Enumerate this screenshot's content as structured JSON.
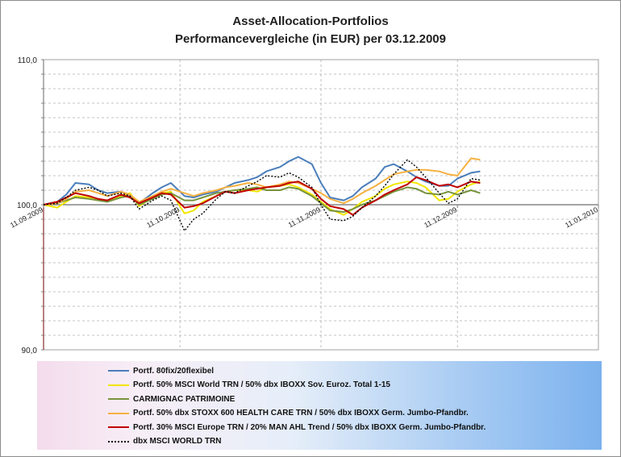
{
  "title": "Asset-Allocation-Portfolios",
  "subtitle": "Performancevergleiche (in EUR) per 03.12.2009",
  "chart_data": {
    "type": "line",
    "x_axis_type": "date",
    "xlim": [
      "11.09.2009",
      "11.01.2010"
    ],
    "ylim": [
      90,
      110
    ],
    "y_ticks": [
      "110,0",
      "100,0",
      "90,0"
    ],
    "y_minor_step": 1,
    "x_ticks": [
      "11.09.2009",
      "11.10.2009",
      "11.11.2009",
      "11.12.2009",
      "11.01.2010"
    ],
    "grid": "horizontal dashed + vertical dashed",
    "reference_line": 100,
    "legend_position": "bottom",
    "series": [
      {
        "name": "Portf. 80fix/20flexibel",
        "color": "#4a7ebb",
        "dash": "solid",
        "points": [
          [
            "2009-09-11",
            100.0
          ],
          [
            "2009-09-14",
            100.2
          ],
          [
            "2009-09-16",
            100.7
          ],
          [
            "2009-09-18",
            101.5
          ],
          [
            "2009-09-21",
            101.4
          ],
          [
            "2009-09-23",
            101.0
          ],
          [
            "2009-09-25",
            100.8
          ],
          [
            "2009-09-28",
            100.9
          ],
          [
            "2009-09-30",
            100.7
          ],
          [
            "2009-10-02",
            100.1
          ],
          [
            "2009-10-05",
            100.8
          ],
          [
            "2009-10-07",
            101.2
          ],
          [
            "2009-10-09",
            101.5
          ],
          [
            "2009-10-12",
            100.6
          ],
          [
            "2009-10-14",
            100.5
          ],
          [
            "2009-10-16",
            100.7
          ],
          [
            "2009-10-19",
            100.9
          ],
          [
            "2009-10-21",
            101.2
          ],
          [
            "2009-10-23",
            101.5
          ],
          [
            "2009-10-26",
            101.7
          ],
          [
            "2009-10-28",
            101.9
          ],
          [
            "2009-10-30",
            102.3
          ],
          [
            "2009-11-02",
            102.6
          ],
          [
            "2009-11-04",
            103.0
          ],
          [
            "2009-11-06",
            103.3
          ],
          [
            "2009-11-09",
            102.8
          ],
          [
            "2009-11-11",
            101.5
          ],
          [
            "2009-11-13",
            100.5
          ],
          [
            "2009-11-16",
            100.3
          ],
          [
            "2009-11-18",
            100.6
          ],
          [
            "2009-11-20",
            101.2
          ],
          [
            "2009-11-23",
            101.8
          ],
          [
            "2009-11-25",
            102.6
          ],
          [
            "2009-11-27",
            102.8
          ],
          [
            "2009-11-30",
            102.3
          ],
          [
            "2009-12-02",
            101.9
          ],
          [
            "2009-12-04",
            101.6
          ],
          [
            "2009-12-07",
            101.3
          ],
          [
            "2009-12-09",
            101.3
          ],
          [
            "2009-12-11",
            101.8
          ],
          [
            "2009-12-14",
            102.2
          ],
          [
            "2009-12-16",
            102.3
          ]
        ]
      },
      {
        "name": "Portf. 50% MSCI World TRN / 50% dbx IBOXX Sov. Euroz. Total 1-15",
        "color": "#f2e600",
        "dash": "solid",
        "points": [
          [
            "2009-09-11",
            100.0
          ],
          [
            "2009-09-14",
            99.8
          ],
          [
            "2009-09-16",
            100.2
          ],
          [
            "2009-09-18",
            100.6
          ],
          [
            "2009-09-21",
            100.5
          ],
          [
            "2009-09-23",
            100.4
          ],
          [
            "2009-09-25",
            100.2
          ],
          [
            "2009-09-28",
            100.6
          ],
          [
            "2009-09-30",
            100.8
          ],
          [
            "2009-10-02",
            99.9
          ],
          [
            "2009-10-05",
            100.5
          ],
          [
            "2009-10-07",
            100.8
          ],
          [
            "2009-10-09",
            100.9
          ],
          [
            "2009-10-12",
            99.4
          ],
          [
            "2009-10-14",
            99.6
          ],
          [
            "2009-10-16",
            100.2
          ],
          [
            "2009-10-19",
            100.6
          ],
          [
            "2009-10-21",
            100.9
          ],
          [
            "2009-10-23",
            101.0
          ],
          [
            "2009-10-26",
            101.0
          ],
          [
            "2009-10-28",
            100.9
          ],
          [
            "2009-10-30",
            101.2
          ],
          [
            "2009-11-02",
            101.3
          ],
          [
            "2009-11-04",
            101.4
          ],
          [
            "2009-11-06",
            101.2
          ],
          [
            "2009-11-09",
            100.7
          ],
          [
            "2009-11-11",
            100.2
          ],
          [
            "2009-11-13",
            99.7
          ],
          [
            "2009-11-16",
            99.3
          ],
          [
            "2009-11-18",
            99.7
          ],
          [
            "2009-11-20",
            100.2
          ],
          [
            "2009-11-23",
            100.6
          ],
          [
            "2009-11-25",
            101.1
          ],
          [
            "2009-11-27",
            101.4
          ],
          [
            "2009-11-30",
            101.6
          ],
          [
            "2009-12-02",
            101.5
          ],
          [
            "2009-12-04",
            101.2
          ],
          [
            "2009-12-07",
            100.3
          ],
          [
            "2009-12-09",
            100.4
          ],
          [
            "2009-12-11",
            100.9
          ],
          [
            "2009-12-14",
            101.4
          ],
          [
            "2009-12-16",
            101.6
          ]
        ]
      },
      {
        "name": "CARMIGNAC PATRIMOINE",
        "color": "#77933c",
        "dash": "solid",
        "points": [
          [
            "2009-09-11",
            100.0
          ],
          [
            "2009-09-14",
            100.1
          ],
          [
            "2009-09-16",
            100.3
          ],
          [
            "2009-09-18",
            100.5
          ],
          [
            "2009-09-21",
            100.4
          ],
          [
            "2009-09-23",
            100.3
          ],
          [
            "2009-09-25",
            100.2
          ],
          [
            "2009-09-28",
            100.5
          ],
          [
            "2009-09-30",
            100.6
          ],
          [
            "2009-10-02",
            100.0
          ],
          [
            "2009-10-05",
            100.4
          ],
          [
            "2009-10-07",
            100.7
          ],
          [
            "2009-10-09",
            100.8
          ],
          [
            "2009-10-12",
            100.3
          ],
          [
            "2009-10-14",
            100.3
          ],
          [
            "2009-10-16",
            100.5
          ],
          [
            "2009-10-19",
            100.8
          ],
          [
            "2009-10-21",
            100.9
          ],
          [
            "2009-10-23",
            101.0
          ],
          [
            "2009-10-26",
            101.1
          ],
          [
            "2009-10-28",
            101.2
          ],
          [
            "2009-10-30",
            101.0
          ],
          [
            "2009-11-02",
            101.0
          ],
          [
            "2009-11-04",
            101.2
          ],
          [
            "2009-11-06",
            101.1
          ],
          [
            "2009-11-09",
            100.6
          ],
          [
            "2009-11-11",
            100.1
          ],
          [
            "2009-11-13",
            99.6
          ],
          [
            "2009-11-16",
            99.5
          ],
          [
            "2009-11-18",
            99.7
          ],
          [
            "2009-11-20",
            100.0
          ],
          [
            "2009-11-23",
            100.3
          ],
          [
            "2009-11-25",
            100.6
          ],
          [
            "2009-11-27",
            100.9
          ],
          [
            "2009-11-30",
            101.2
          ],
          [
            "2009-12-02",
            101.1
          ],
          [
            "2009-12-04",
            100.8
          ],
          [
            "2009-12-07",
            100.7
          ],
          [
            "2009-12-09",
            100.9
          ],
          [
            "2009-12-11",
            100.7
          ],
          [
            "2009-12-14",
            101.0
          ],
          [
            "2009-12-16",
            100.8
          ]
        ]
      },
      {
        "name": "Portf. 50% dbx STOXX 600  HEALTH CARE TRN / 50% dbx IBOXX Germ. Jumbo-Pfandbr.",
        "color": "#f6b142",
        "dash": "solid",
        "points": [
          [
            "2009-09-11",
            100.0
          ],
          [
            "2009-09-14",
            100.1
          ],
          [
            "2009-09-16",
            100.4
          ],
          [
            "2009-09-18",
            100.9
          ],
          [
            "2009-09-21",
            101.0
          ],
          [
            "2009-09-23",
            100.8
          ],
          [
            "2009-09-25",
            100.6
          ],
          [
            "2009-09-28",
            100.9
          ],
          [
            "2009-09-30",
            100.7
          ],
          [
            "2009-10-02",
            100.2
          ],
          [
            "2009-10-05",
            100.6
          ],
          [
            "2009-10-07",
            100.9
          ],
          [
            "2009-10-09",
            101.1
          ],
          [
            "2009-10-12",
            100.8
          ],
          [
            "2009-10-14",
            100.6
          ],
          [
            "2009-10-16",
            100.8
          ],
          [
            "2009-10-19",
            101.0
          ],
          [
            "2009-10-21",
            101.2
          ],
          [
            "2009-10-23",
            101.3
          ],
          [
            "2009-10-26",
            101.5
          ],
          [
            "2009-10-28",
            101.4
          ],
          [
            "2009-10-30",
            101.2
          ],
          [
            "2009-11-02",
            101.4
          ],
          [
            "2009-11-04",
            101.6
          ],
          [
            "2009-11-06",
            101.5
          ],
          [
            "2009-11-09",
            101.1
          ],
          [
            "2009-11-11",
            100.8
          ],
          [
            "2009-11-13",
            100.4
          ],
          [
            "2009-11-16",
            100.1
          ],
          [
            "2009-11-18",
            100.4
          ],
          [
            "2009-11-20",
            100.8
          ],
          [
            "2009-11-23",
            101.3
          ],
          [
            "2009-11-25",
            101.7
          ],
          [
            "2009-11-27",
            102.1
          ],
          [
            "2009-11-30",
            102.3
          ],
          [
            "2009-12-02",
            102.4
          ],
          [
            "2009-12-04",
            102.4
          ],
          [
            "2009-12-07",
            102.3
          ],
          [
            "2009-12-09",
            102.1
          ],
          [
            "2009-12-11",
            102.0
          ],
          [
            "2009-12-14",
            103.2
          ],
          [
            "2009-12-16",
            103.1
          ]
        ]
      },
      {
        "name": "Portf. 30% MSCI Europe TRN / 20% MAN AHL Trend / 50% dbx IBOXX Germ. Jumbo-Pfandbr.",
        "color": "#c00000",
        "dash": "solid",
        "points": [
          [
            "2009-09-11",
            100.0
          ],
          [
            "2009-09-14",
            100.2
          ],
          [
            "2009-09-16",
            100.5
          ],
          [
            "2009-09-18",
            100.8
          ],
          [
            "2009-09-21",
            100.6
          ],
          [
            "2009-09-23",
            100.4
          ],
          [
            "2009-09-25",
            100.3
          ],
          [
            "2009-09-28",
            100.7
          ],
          [
            "2009-09-30",
            100.5
          ],
          [
            "2009-10-02",
            100.1
          ],
          [
            "2009-10-05",
            100.5
          ],
          [
            "2009-10-07",
            100.8
          ],
          [
            "2009-10-09",
            100.7
          ],
          [
            "2009-10-12",
            99.8
          ],
          [
            "2009-10-14",
            99.9
          ],
          [
            "2009-10-16",
            100.1
          ],
          [
            "2009-10-19",
            100.6
          ],
          [
            "2009-10-21",
            100.9
          ],
          [
            "2009-10-23",
            100.8
          ],
          [
            "2009-10-26",
            101.0
          ],
          [
            "2009-10-28",
            101.1
          ],
          [
            "2009-10-30",
            101.2
          ],
          [
            "2009-11-02",
            101.3
          ],
          [
            "2009-11-04",
            101.5
          ],
          [
            "2009-11-06",
            101.6
          ],
          [
            "2009-11-09",
            101.1
          ],
          [
            "2009-11-11",
            100.4
          ],
          [
            "2009-11-13",
            99.9
          ],
          [
            "2009-11-16",
            99.7
          ],
          [
            "2009-11-18",
            99.3
          ],
          [
            "2009-11-20",
            99.8
          ],
          [
            "2009-11-23",
            100.3
          ],
          [
            "2009-11-25",
            100.7
          ],
          [
            "2009-11-27",
            101.0
          ],
          [
            "2009-11-30",
            101.4
          ],
          [
            "2009-12-02",
            101.9
          ],
          [
            "2009-12-04",
            101.7
          ],
          [
            "2009-12-07",
            101.3
          ],
          [
            "2009-12-09",
            101.4
          ],
          [
            "2009-12-11",
            101.2
          ],
          [
            "2009-12-14",
            101.6
          ],
          [
            "2009-12-16",
            101.5
          ]
        ]
      },
      {
        "name": "dbx MSCI WORLD TRN",
        "color": "#000000",
        "dash": "dotted",
        "points": [
          [
            "2009-09-11",
            100.0
          ],
          [
            "2009-09-14",
            100.1
          ],
          [
            "2009-09-16",
            100.5
          ],
          [
            "2009-09-18",
            101.0
          ],
          [
            "2009-09-21",
            101.2
          ],
          [
            "2009-09-23",
            101.0
          ],
          [
            "2009-09-25",
            100.6
          ],
          [
            "2009-09-28",
            100.8
          ],
          [
            "2009-09-30",
            100.6
          ],
          [
            "2009-10-02",
            99.7
          ],
          [
            "2009-10-05",
            100.3
          ],
          [
            "2009-10-07",
            100.6
          ],
          [
            "2009-10-09",
            100.3
          ],
          [
            "2009-10-12",
            98.2
          ],
          [
            "2009-10-14",
            99.0
          ],
          [
            "2009-10-16",
            99.4
          ],
          [
            "2009-10-19",
            100.4
          ],
          [
            "2009-10-21",
            100.9
          ],
          [
            "2009-10-23",
            100.8
          ],
          [
            "2009-10-26",
            101.3
          ],
          [
            "2009-10-28",
            101.6
          ],
          [
            "2009-10-30",
            102.0
          ],
          [
            "2009-11-02",
            101.9
          ],
          [
            "2009-11-04",
            102.2
          ],
          [
            "2009-11-06",
            101.9
          ],
          [
            "2009-11-09",
            101.2
          ],
          [
            "2009-11-11",
            100.0
          ],
          [
            "2009-11-13",
            99.0
          ],
          [
            "2009-11-16",
            98.9
          ],
          [
            "2009-11-18",
            99.2
          ],
          [
            "2009-11-20",
            99.8
          ],
          [
            "2009-11-23",
            100.6
          ],
          [
            "2009-11-25",
            101.3
          ],
          [
            "2009-11-27",
            102.1
          ],
          [
            "2009-11-30",
            103.1
          ],
          [
            "2009-12-02",
            102.6
          ],
          [
            "2009-12-04",
            101.9
          ],
          [
            "2009-12-07",
            100.8
          ],
          [
            "2009-12-09",
            100.1
          ],
          [
            "2009-12-11",
            100.4
          ],
          [
            "2009-12-14",
            101.8
          ],
          [
            "2009-12-16",
            101.7
          ]
        ]
      }
    ]
  }
}
